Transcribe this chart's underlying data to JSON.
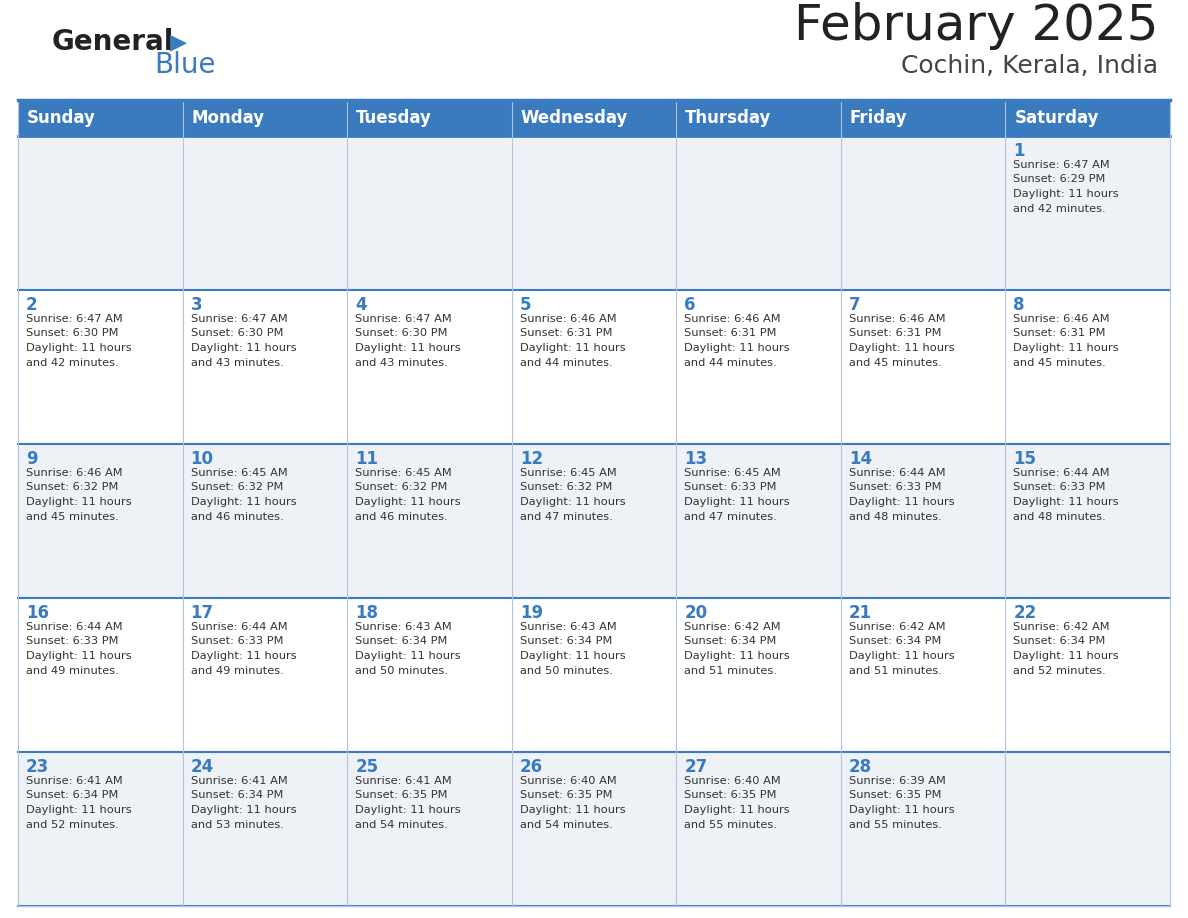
{
  "title": "February 2025",
  "subtitle": "Cochin, Kerala, India",
  "header_bg": "#3a7abf",
  "header_text": "#ffffff",
  "day_names": [
    "Sunday",
    "Monday",
    "Tuesday",
    "Wednesday",
    "Thursday",
    "Friday",
    "Saturday"
  ],
  "row0_bg": "#eef2f7",
  "row1_bg": "#ffffff",
  "row2_bg": "#eef2f7",
  "row3_bg": "#ffffff",
  "row4_bg": "#eef2f7",
  "cell_border_color": "#3a7abf",
  "light_border_color": "#b0c4de",
  "day_num_color": "#3a7abf",
  "info_color": "#333333",
  "logo_general_color": "#222222",
  "logo_blue_color": "#3a7abf",
  "title_color": "#222222",
  "subtitle_color": "#444444",
  "calendar": [
    [
      null,
      null,
      null,
      null,
      null,
      null,
      {
        "day": "1",
        "sunrise": "6:47 AM",
        "sunset": "6:29 PM",
        "daylight": "11 hours\nand 42 minutes."
      }
    ],
    [
      {
        "day": "2",
        "sunrise": "6:47 AM",
        "sunset": "6:30 PM",
        "daylight": "11 hours\nand 42 minutes."
      },
      {
        "day": "3",
        "sunrise": "6:47 AM",
        "sunset": "6:30 PM",
        "daylight": "11 hours\nand 43 minutes."
      },
      {
        "day": "4",
        "sunrise": "6:47 AM",
        "sunset": "6:30 PM",
        "daylight": "11 hours\nand 43 minutes."
      },
      {
        "day": "5",
        "sunrise": "6:46 AM",
        "sunset": "6:31 PM",
        "daylight": "11 hours\nand 44 minutes."
      },
      {
        "day": "6",
        "sunrise": "6:46 AM",
        "sunset": "6:31 PM",
        "daylight": "11 hours\nand 44 minutes."
      },
      {
        "day": "7",
        "sunrise": "6:46 AM",
        "sunset": "6:31 PM",
        "daylight": "11 hours\nand 45 minutes."
      },
      {
        "day": "8",
        "sunrise": "6:46 AM",
        "sunset": "6:31 PM",
        "daylight": "11 hours\nand 45 minutes."
      }
    ],
    [
      {
        "day": "9",
        "sunrise": "6:46 AM",
        "sunset": "6:32 PM",
        "daylight": "11 hours\nand 45 minutes."
      },
      {
        "day": "10",
        "sunrise": "6:45 AM",
        "sunset": "6:32 PM",
        "daylight": "11 hours\nand 46 minutes."
      },
      {
        "day": "11",
        "sunrise": "6:45 AM",
        "sunset": "6:32 PM",
        "daylight": "11 hours\nand 46 minutes."
      },
      {
        "day": "12",
        "sunrise": "6:45 AM",
        "sunset": "6:32 PM",
        "daylight": "11 hours\nand 47 minutes."
      },
      {
        "day": "13",
        "sunrise": "6:45 AM",
        "sunset": "6:33 PM",
        "daylight": "11 hours\nand 47 minutes."
      },
      {
        "day": "14",
        "sunrise": "6:44 AM",
        "sunset": "6:33 PM",
        "daylight": "11 hours\nand 48 minutes."
      },
      {
        "day": "15",
        "sunrise": "6:44 AM",
        "sunset": "6:33 PM",
        "daylight": "11 hours\nand 48 minutes."
      }
    ],
    [
      {
        "day": "16",
        "sunrise": "6:44 AM",
        "sunset": "6:33 PM",
        "daylight": "11 hours\nand 49 minutes."
      },
      {
        "day": "17",
        "sunrise": "6:44 AM",
        "sunset": "6:33 PM",
        "daylight": "11 hours\nand 49 minutes."
      },
      {
        "day": "18",
        "sunrise": "6:43 AM",
        "sunset": "6:34 PM",
        "daylight": "11 hours\nand 50 minutes."
      },
      {
        "day": "19",
        "sunrise": "6:43 AM",
        "sunset": "6:34 PM",
        "daylight": "11 hours\nand 50 minutes."
      },
      {
        "day": "20",
        "sunrise": "6:42 AM",
        "sunset": "6:34 PM",
        "daylight": "11 hours\nand 51 minutes."
      },
      {
        "day": "21",
        "sunrise": "6:42 AM",
        "sunset": "6:34 PM",
        "daylight": "11 hours\nand 51 minutes."
      },
      {
        "day": "22",
        "sunrise": "6:42 AM",
        "sunset": "6:34 PM",
        "daylight": "11 hours\nand 52 minutes."
      }
    ],
    [
      {
        "day": "23",
        "sunrise": "6:41 AM",
        "sunset": "6:34 PM",
        "daylight": "11 hours\nand 52 minutes."
      },
      {
        "day": "24",
        "sunrise": "6:41 AM",
        "sunset": "6:34 PM",
        "daylight": "11 hours\nand 53 minutes."
      },
      {
        "day": "25",
        "sunrise": "6:41 AM",
        "sunset": "6:35 PM",
        "daylight": "11 hours\nand 54 minutes."
      },
      {
        "day": "26",
        "sunrise": "6:40 AM",
        "sunset": "6:35 PM",
        "daylight": "11 hours\nand 54 minutes."
      },
      {
        "day": "27",
        "sunrise": "6:40 AM",
        "sunset": "6:35 PM",
        "daylight": "11 hours\nand 55 minutes."
      },
      {
        "day": "28",
        "sunrise": "6:39 AM",
        "sunset": "6:35 PM",
        "daylight": "11 hours\nand 55 minutes."
      },
      null
    ]
  ]
}
